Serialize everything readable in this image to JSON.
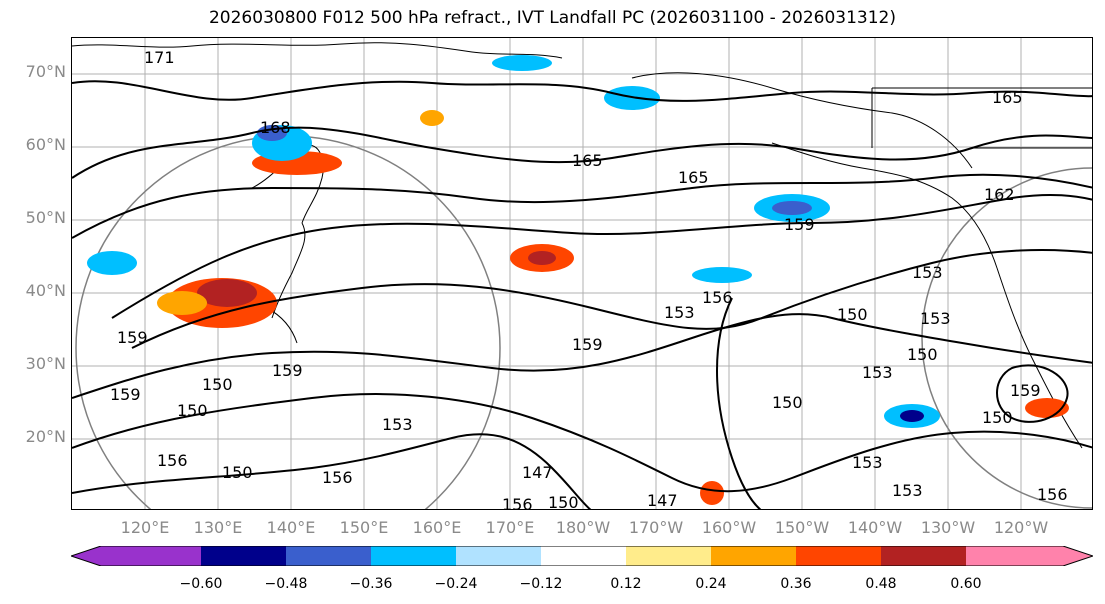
{
  "title": "2026030800 F012 500 hPa refract., IVT Landfall PC (2026031100 - 2026031312)",
  "lat_labels": [
    "70°N",
    "60°N",
    "50°N",
    "40°N",
    "30°N",
    "20°N"
  ],
  "lon_labels": [
    "120°E",
    "130°E",
    "140°E",
    "150°E",
    "160°E",
    "170°E",
    "180°W",
    "170°W",
    "160°W",
    "150°W",
    "140°W",
    "130°W",
    "120°W"
  ],
  "colorbar": {
    "colors": [
      "#9932cc",
      "#00008b",
      "#3a5fcd",
      "#00bfff",
      "#b0e2ff",
      "#ffffff",
      "#ffec8b",
      "#ffa500",
      "#ff4500",
      "#b22222",
      "#ff82ab"
    ],
    "tick_labels": [
      "−0.60",
      "−0.48",
      "−0.36",
      "−0.24",
      "−0.12",
      "0.12",
      "0.24",
      "0.36",
      "0.48",
      "0.60"
    ]
  },
  "contour_labels": [
    "171",
    "168",
    "165",
    "165",
    "165",
    "162",
    "159",
    "159",
    "159",
    "159",
    "159",
    "156",
    "156",
    "156",
    "156",
    "153",
    "153",
    "153",
    "153",
    "153",
    "153",
    "153",
    "150",
    "150",
    "150",
    "150",
    "150",
    "150",
    "150",
    "150",
    "147",
    "147",
    "159",
    "156"
  ]
}
